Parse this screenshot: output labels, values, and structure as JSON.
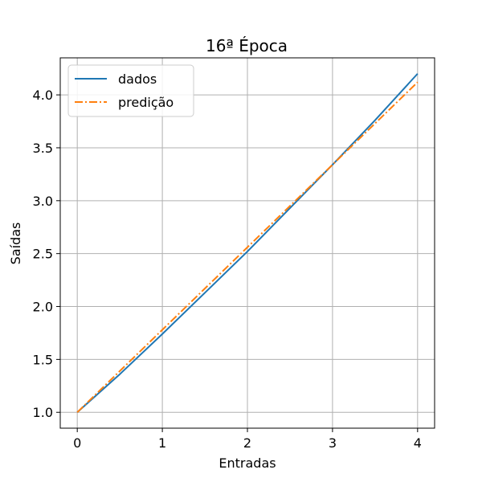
{
  "chart_data": {
    "type": "line",
    "title": "16ª Época",
    "xlabel": "Entradas",
    "ylabel": "Saídas",
    "xlim": [
      -0.2,
      4.2
    ],
    "ylim": [
      0.85,
      4.35
    ],
    "xticks": [
      0,
      1,
      2,
      3,
      4
    ],
    "xtick_labels": [
      "0",
      "1",
      "2",
      "3",
      "4"
    ],
    "yticks": [
      1.0,
      1.5,
      2.0,
      2.5,
      3.0,
      3.5,
      4.0
    ],
    "ytick_labels": [
      "1.0",
      "1.5",
      "2.0",
      "2.5",
      "3.0",
      "3.5",
      "4.0"
    ],
    "grid": true,
    "legend_position": "top-left",
    "series": [
      {
        "name": "dados",
        "color": "#1f77b4",
        "line_style": "solid",
        "x": [
          0,
          0.5,
          1,
          1.5,
          2,
          2.5,
          3,
          3.5,
          4
        ],
        "y": [
          1.0,
          1.36,
          1.74,
          2.13,
          2.52,
          2.93,
          3.34,
          3.76,
          4.2
        ]
      },
      {
        "name": "predição",
        "color": "#ff7f0e",
        "line_style": "dashdot",
        "x": [
          0,
          4
        ],
        "y": [
          1.0,
          4.12
        ]
      }
    ]
  }
}
